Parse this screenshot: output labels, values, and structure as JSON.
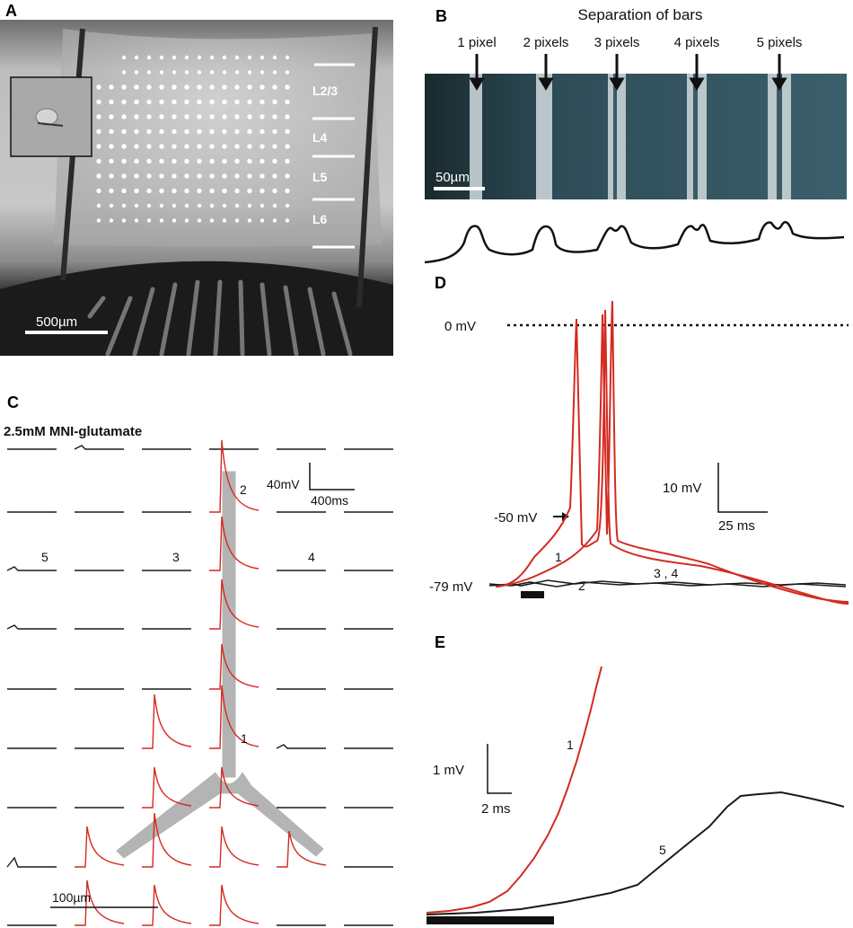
{
  "panels": {
    "A": {
      "label": "A",
      "layers": [
        "L2/3",
        "L4",
        "L5",
        "L6"
      ],
      "scalebar": "500µm"
    },
    "B": {
      "label": "B",
      "title": "Separation of bars",
      "bar_labels": [
        "1 pixel",
        "2 pixels",
        "3 pixels",
        "4 pixels",
        "5 pixels"
      ],
      "scalebar": "50µm"
    },
    "C": {
      "label": "C",
      "title": "2.5mM MNI-glutamate",
      "scale_v": "40mV",
      "scale_h": "400ms",
      "scalebar": "100µm",
      "trace_labels": {
        "t1": "1",
        "t2": "2",
        "t3": "3",
        "t4": "4",
        "t5": "5"
      },
      "colors": {
        "responsive": "#d42a20",
        "nonresponsive": "#1a1a1a",
        "neuron": "#b4b4b4"
      }
    },
    "D": {
      "label": "D",
      "level_0": "0 mV",
      "level_50": "-50 mV",
      "level_79": "-79 mV",
      "scale_v": "10 mV",
      "scale_h": "25 ms",
      "label_1": "1",
      "label_2": "2",
      "label_34": "3 , 4"
    },
    "E": {
      "label": "E",
      "scale_v": "1 mV",
      "scale_h": "2 ms",
      "label_1": "1",
      "label_5": "5"
    }
  }
}
